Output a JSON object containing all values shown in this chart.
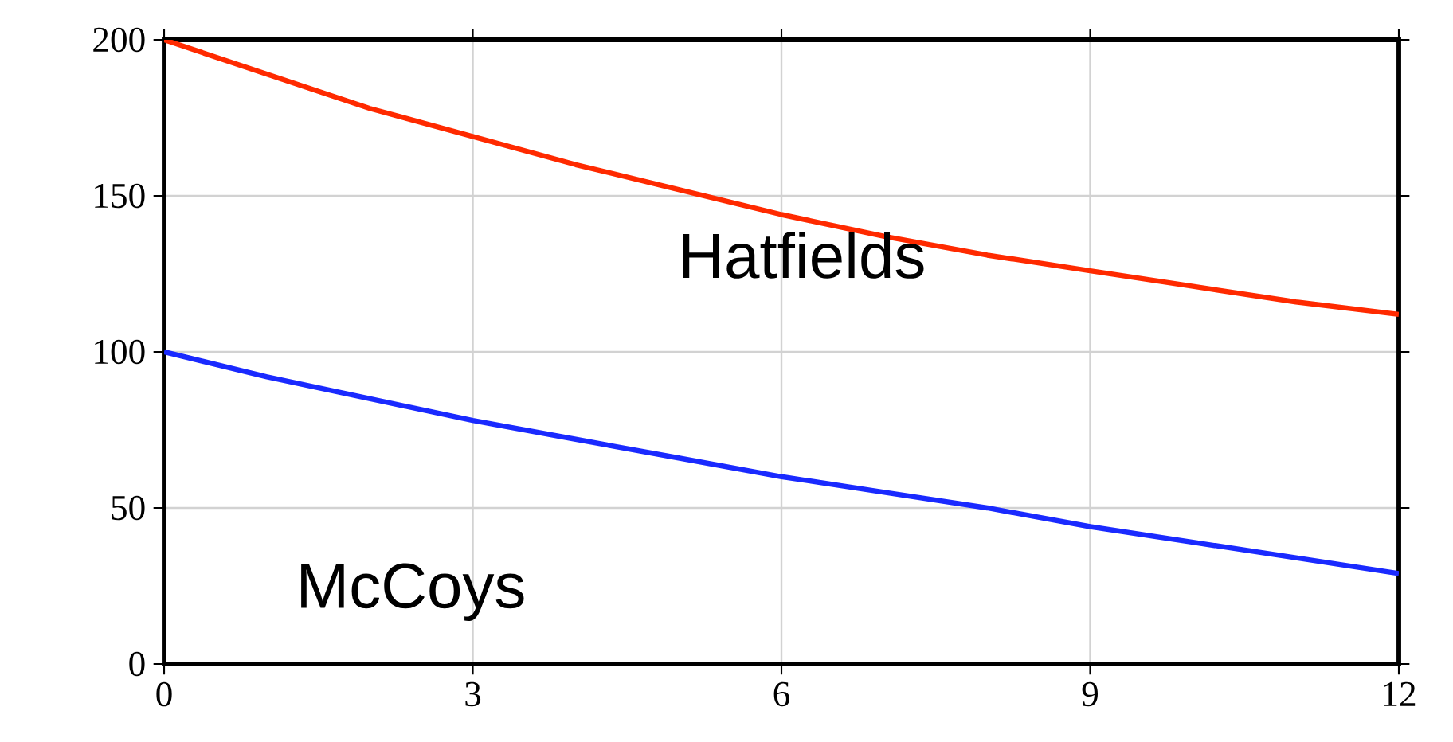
{
  "chart_data": {
    "type": "line",
    "x": [
      0,
      1,
      2,
      3,
      4,
      5,
      6,
      7,
      8,
      9,
      10,
      11,
      12
    ],
    "series": [
      {
        "name": "Hatfields",
        "color": "#ff2a00",
        "values": [
          200,
          189,
          178,
          169,
          160,
          152,
          144,
          137,
          131,
          126,
          121,
          116,
          112
        ]
      },
      {
        "name": "McCoys",
        "color": "#1a2aff",
        "values": [
          100,
          92,
          85,
          78,
          72,
          66,
          60,
          55,
          50,
          44,
          39,
          34,
          29
        ]
      }
    ],
    "xlim": [
      0,
      12
    ],
    "ylim": [
      0,
      200
    ],
    "xticks": [
      0,
      3,
      6,
      9,
      12
    ],
    "yticks": [
      0,
      50,
      100,
      150,
      200
    ],
    "grid": true,
    "legend": false,
    "marker": "none",
    "line_style": "solid"
  }
}
